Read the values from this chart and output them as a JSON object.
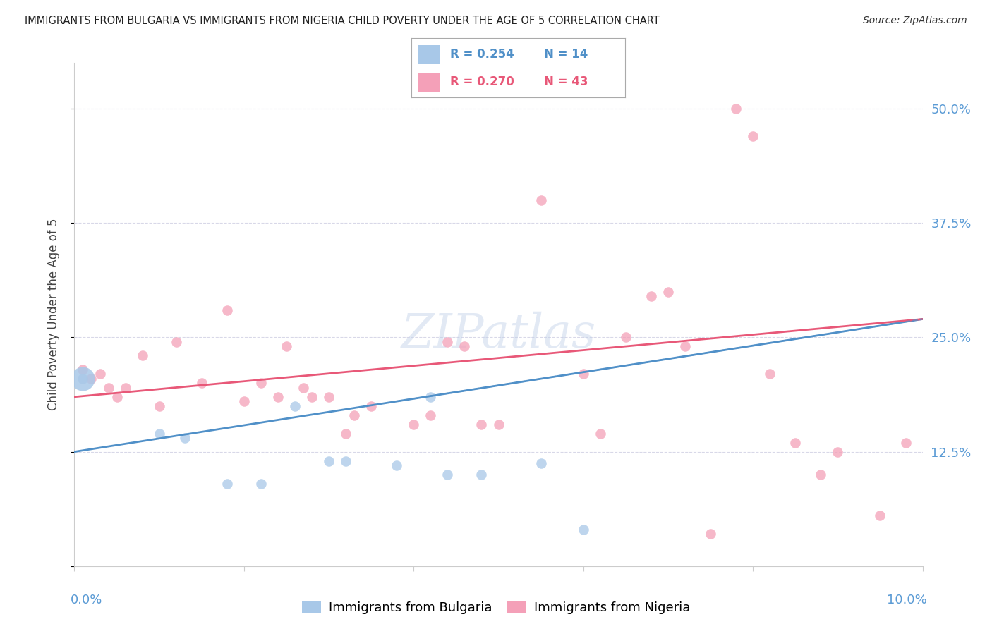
{
  "title": "IMMIGRANTS FROM BULGARIA VS IMMIGRANTS FROM NIGERIA CHILD POVERTY UNDER THE AGE OF 5 CORRELATION CHART",
  "source": "Source: ZipAtlas.com",
  "ylabel": "Child Poverty Under the Age of 5",
  "yticks": [
    0.0,
    0.125,
    0.25,
    0.375,
    0.5
  ],
  "ytick_labels": [
    "",
    "12.5%",
    "25.0%",
    "37.5%",
    "50.0%"
  ],
  "xlim": [
    0.0,
    0.1
  ],
  "ylim": [
    0.0,
    0.55
  ],
  "watermark": "ZIPatlas",
  "legend_r_bulgaria": "R = 0.254",
  "legend_n_bulgaria": "N = 14",
  "legend_r_nigeria": "R = 0.270",
  "legend_n_nigeria": "N = 43",
  "bulgaria_color": "#a8c8e8",
  "nigeria_color": "#f4a0b8",
  "bulgaria_line_color": "#5090c8",
  "nigeria_line_color": "#e85878",
  "bulgaria_scatter_x": [
    0.001,
    0.01,
    0.013,
    0.018,
    0.022,
    0.026,
    0.03,
    0.032,
    0.038,
    0.042,
    0.044,
    0.048,
    0.055,
    0.06
  ],
  "bulgaria_scatter_y": [
    0.205,
    0.145,
    0.14,
    0.09,
    0.09,
    0.175,
    0.115,
    0.115,
    0.11,
    0.185,
    0.1,
    0.1,
    0.112,
    0.04
  ],
  "nigeria_scatter_x": [
    0.001,
    0.002,
    0.003,
    0.004,
    0.005,
    0.006,
    0.008,
    0.01,
    0.012,
    0.015,
    0.018,
    0.02,
    0.022,
    0.024,
    0.025,
    0.027,
    0.028,
    0.03,
    0.032,
    0.033,
    0.035,
    0.04,
    0.042,
    0.044,
    0.046,
    0.048,
    0.05,
    0.055,
    0.06,
    0.062,
    0.065,
    0.068,
    0.07,
    0.072,
    0.075,
    0.078,
    0.08,
    0.082,
    0.085,
    0.088,
    0.09,
    0.095,
    0.098
  ],
  "nigeria_scatter_y": [
    0.215,
    0.205,
    0.21,
    0.195,
    0.185,
    0.195,
    0.23,
    0.175,
    0.245,
    0.2,
    0.28,
    0.18,
    0.2,
    0.185,
    0.24,
    0.195,
    0.185,
    0.185,
    0.145,
    0.165,
    0.175,
    0.155,
    0.165,
    0.245,
    0.24,
    0.155,
    0.155,
    0.4,
    0.21,
    0.145,
    0.25,
    0.295,
    0.3,
    0.24,
    0.035,
    0.5,
    0.47,
    0.21,
    0.135,
    0.1,
    0.125,
    0.055,
    0.135
  ],
  "bg_color": "#ffffff",
  "grid_color": "#d8d8e8",
  "title_color": "#222222",
  "axis_label_color": "#5b9bd5",
  "right_axis_color": "#5b9bd5",
  "bulgaria_trend_x0": 0.0,
  "bulgaria_trend_y0": 0.125,
  "bulgaria_trend_x1": 0.1,
  "bulgaria_trend_y1": 0.27,
  "nigeria_trend_x0": 0.0,
  "nigeria_trend_y0": 0.185,
  "nigeria_trend_x1": 0.1,
  "nigeria_trend_y1": 0.27
}
